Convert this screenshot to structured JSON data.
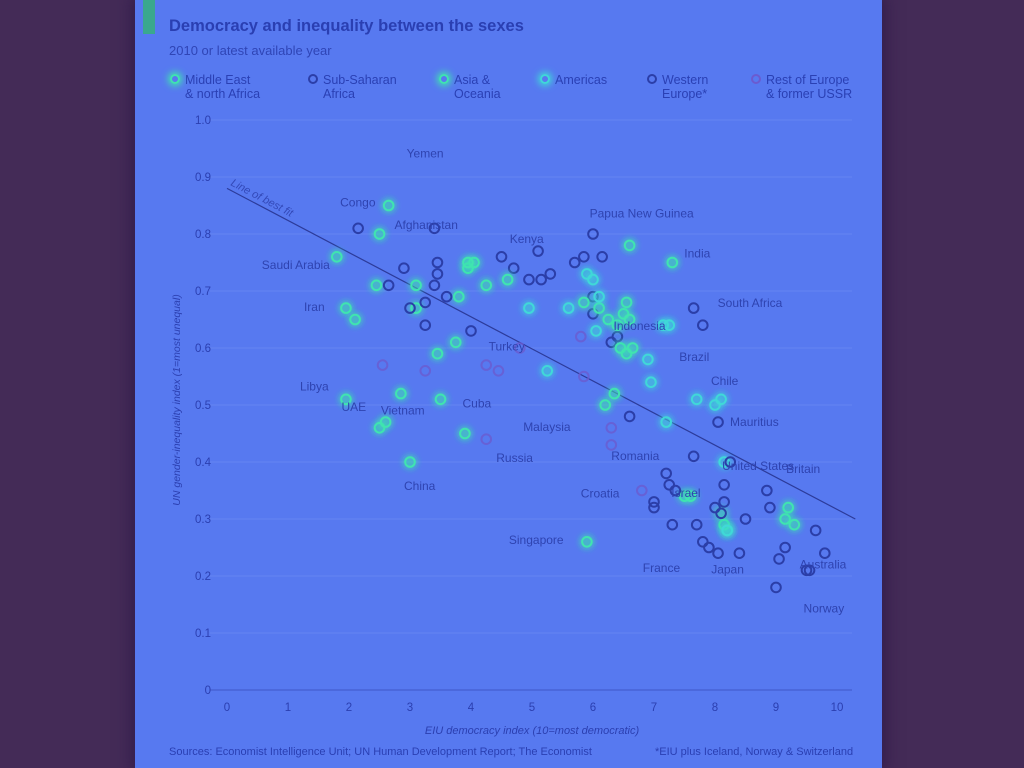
{
  "title": "Democracy and inequality between the sexes",
  "subtitle": "2010 or latest available year",
  "legend": [
    {
      "label": "Middle East\n& north Africa",
      "color": "#3fe4b0"
    },
    {
      "label": "Sub-Saharan\nAfrica",
      "color": "#2b3ea8"
    },
    {
      "label": "Asia &\nOceania",
      "color": "#3fe4b0"
    },
    {
      "label": "Americas",
      "color": "#3fd8d8"
    },
    {
      "label": "Western\nEurope*",
      "color": "#2b3ea8"
    },
    {
      "label": "Rest of Europe\n& former USSR",
      "color": "#6a5bd0"
    }
  ],
  "footer": {
    "source": "Sources: Economist Intelligence Unit; UN Human Development Report; The Economist",
    "footnote": "*EIU plus Iceland, Norway & Switzerland"
  },
  "chart_data": {
    "type": "scatter",
    "xlabel": "EIU democracy index (10=most democratic)",
    "ylabel": "UN gender-inequality index (1=most unequal)",
    "xlim": [
      0,
      10
    ],
    "ylim": [
      0,
      1.0
    ],
    "xticks": [
      "0",
      "1",
      "2",
      "3",
      "4",
      "5",
      "6",
      "7",
      "8",
      "9",
      "10"
    ],
    "yticks": [
      "0",
      "0.1",
      "0.2",
      "0.3",
      "0.4",
      "0.5",
      "0.6",
      "0.7",
      "0.8",
      "0.9",
      "1.0"
    ],
    "trendline": {
      "label": "Line of best fit",
      "x": [
        0,
        10.3
      ],
      "y": [
        0.88,
        0.3
      ]
    },
    "grid": true,
    "legend_position": "top",
    "series": [
      {
        "name": "Middle East & north Africa",
        "color": "#3fe4b0",
        "points": [
          [
            2.65,
            0.85
          ],
          [
            1.8,
            0.76
          ],
          [
            1.95,
            0.67
          ],
          [
            2.1,
            0.65
          ],
          [
            2.45,
            0.71
          ],
          [
            3.1,
            0.71
          ],
          [
            3.1,
            0.67
          ],
          [
            3.8,
            0.69
          ],
          [
            3.95,
            0.74
          ],
          [
            4.05,
            0.75
          ],
          [
            4.25,
            0.71
          ],
          [
            3.45,
            0.59
          ],
          [
            3.75,
            0.61
          ],
          [
            1.95,
            0.51
          ],
          [
            2.5,
            0.46
          ],
          [
            2.85,
            0.52
          ],
          [
            3.5,
            0.51
          ],
          [
            3.9,
            0.45
          ]
        ]
      },
      {
        "name": "Sub-Saharan Africa",
        "color": "#2b3ea8",
        "points": [
          [
            2.15,
            0.81
          ],
          [
            3.4,
            0.81
          ],
          [
            2.9,
            0.74
          ],
          [
            3.45,
            0.75
          ],
          [
            3.45,
            0.73
          ],
          [
            3.4,
            0.71
          ],
          [
            2.65,
            0.71
          ],
          [
            3.0,
            0.67
          ],
          [
            3.25,
            0.68
          ],
          [
            3.6,
            0.69
          ],
          [
            4.5,
            0.76
          ],
          [
            4.7,
            0.74
          ],
          [
            4.95,
            0.72
          ],
          [
            5.15,
            0.72
          ],
          [
            5.1,
            0.77
          ],
          [
            5.3,
            0.73
          ],
          [
            5.7,
            0.75
          ],
          [
            5.85,
            0.76
          ],
          [
            6.0,
            0.8
          ],
          [
            6.15,
            0.76
          ],
          [
            6.0,
            0.69
          ],
          [
            6.0,
            0.66
          ],
          [
            6.3,
            0.61
          ],
          [
            7.65,
            0.67
          ],
          [
            7.8,
            0.64
          ],
          [
            6.4,
            0.62
          ],
          [
            3.25,
            0.64
          ],
          [
            4.0,
            0.63
          ],
          [
            6.6,
            0.48
          ],
          [
            8.05,
            0.47
          ]
        ]
      },
      {
        "name": "Asia & Oceania",
        "color": "#3fe4b0",
        "points": [
          [
            2.5,
            0.8
          ],
          [
            3.95,
            0.75
          ],
          [
            4.6,
            0.72
          ],
          [
            5.85,
            0.68
          ],
          [
            6.1,
            0.67
          ],
          [
            6.25,
            0.65
          ],
          [
            6.4,
            0.64
          ],
          [
            6.5,
            0.66
          ],
          [
            6.55,
            0.68
          ],
          [
            6.6,
            0.65
          ],
          [
            6.45,
            0.6
          ],
          [
            6.55,
            0.59
          ],
          [
            6.65,
            0.6
          ],
          [
            6.6,
            0.78
          ],
          [
            7.3,
            0.75
          ],
          [
            5.9,
            0.26
          ],
          [
            6.2,
            0.5
          ],
          [
            6.35,
            0.52
          ],
          [
            7.5,
            0.34
          ],
          [
            7.6,
            0.34
          ],
          [
            8.15,
            0.29
          ],
          [
            8.2,
            0.28
          ],
          [
            8.1,
            0.31
          ],
          [
            9.2,
            0.32
          ],
          [
            9.15,
            0.3
          ],
          [
            9.3,
            0.29
          ],
          [
            3.0,
            0.4
          ],
          [
            2.6,
            0.47
          ]
        ]
      },
      {
        "name": "Americas",
        "color": "#3fd8d8",
        "points": [
          [
            5.6,
            0.67
          ],
          [
            5.9,
            0.73
          ],
          [
            6.0,
            0.72
          ],
          [
            6.1,
            0.69
          ],
          [
            6.05,
            0.63
          ],
          [
            7.15,
            0.64
          ],
          [
            7.25,
            0.64
          ],
          [
            6.9,
            0.58
          ],
          [
            7.7,
            0.51
          ],
          [
            6.95,
            0.54
          ],
          [
            8.0,
            0.5
          ],
          [
            8.1,
            0.51
          ],
          [
            7.2,
            0.47
          ],
          [
            8.15,
            0.4
          ],
          [
            8.2,
            0.28
          ],
          [
            5.25,
            0.56
          ],
          [
            4.95,
            0.67
          ]
        ]
      },
      {
        "name": "Western Europe*",
        "color": "#2b3ea8",
        "points": [
          [
            7.2,
            0.38
          ],
          [
            7.25,
            0.36
          ],
          [
            7.35,
            0.35
          ],
          [
            7.65,
            0.41
          ],
          [
            8.15,
            0.36
          ],
          [
            8.25,
            0.4
          ],
          [
            8.15,
            0.33
          ],
          [
            8.0,
            0.32
          ],
          [
            8.1,
            0.31
          ],
          [
            7.7,
            0.29
          ],
          [
            7.3,
            0.29
          ],
          [
            7.0,
            0.32
          ],
          [
            7.0,
            0.33
          ],
          [
            7.8,
            0.26
          ],
          [
            7.9,
            0.25
          ],
          [
            8.05,
            0.24
          ],
          [
            8.5,
            0.3
          ],
          [
            8.85,
            0.35
          ],
          [
            8.9,
            0.32
          ],
          [
            9.05,
            0.23
          ],
          [
            9.15,
            0.25
          ],
          [
            9.5,
            0.21
          ],
          [
            9.55,
            0.21
          ],
          [
            9.65,
            0.28
          ],
          [
            9.8,
            0.24
          ],
          [
            9.0,
            0.18
          ],
          [
            8.4,
            0.24
          ]
        ]
      },
      {
        "name": "Rest of Europe & former USSR",
        "color": "#6a5bd0",
        "points": [
          [
            4.25,
            0.57
          ],
          [
            4.45,
            0.56
          ],
          [
            4.8,
            0.6
          ],
          [
            5.8,
            0.62
          ],
          [
            5.85,
            0.55
          ],
          [
            6.3,
            0.46
          ],
          [
            6.3,
            0.43
          ],
          [
            6.8,
            0.35
          ],
          [
            2.55,
            0.57
          ],
          [
            3.25,
            0.56
          ],
          [
            4.25,
            0.44
          ]
        ]
      }
    ],
    "annotations": [
      {
        "text": "Yemen",
        "x": 2.65,
        "y": 0.85
      },
      {
        "text": "Congo",
        "x": 2.15,
        "y": 0.81
      },
      {
        "text": "Afghanistan",
        "x": 2.5,
        "y": 0.8
      },
      {
        "text": "Kenya",
        "x": 4.7,
        "y": 0.74
      },
      {
        "text": "Papua New Guinea",
        "x": 6.6,
        "y": 0.78
      },
      {
        "text": "India",
        "x": 7.3,
        "y": 0.75
      },
      {
        "text": "Saudi Arabia",
        "x": 1.8,
        "y": 0.76
      },
      {
        "text": "Indonesia",
        "x": 6.5,
        "y": 0.66
      },
      {
        "text": "Iran",
        "x": 1.95,
        "y": 0.67
      },
      {
        "text": "South Africa",
        "x": 7.65,
        "y": 0.67
      },
      {
        "text": "Turkey",
        "x": 5.6,
        "y": 0.62
      },
      {
        "text": "Brazil",
        "x": 7.25,
        "y": 0.64
      },
      {
        "text": "Libya",
        "x": 1.95,
        "y": 0.51
      },
      {
        "text": "Cuba",
        "x": 3.5,
        "y": 0.51
      },
      {
        "text": "Chile",
        "x": 8.0,
        "y": 0.5
      },
      {
        "text": "Malaysia",
        "x": 6.2,
        "y": 0.5
      },
      {
        "text": "Mauritius",
        "x": 8.05,
        "y": 0.47
      },
      {
        "text": "UAE",
        "x": 2.5,
        "y": 0.46
      },
      {
        "text": "Vietnam",
        "x": 2.85,
        "y": 0.52
      },
      {
        "text": "Romania",
        "x": 6.3,
        "y": 0.46
      },
      {
        "text": "United States",
        "x": 8.15,
        "y": 0.4
      },
      {
        "text": "Russia",
        "x": 4.25,
        "y": 0.44
      },
      {
        "text": "Israel",
        "x": 7.25,
        "y": 0.36
      },
      {
        "text": "Britain",
        "x": 8.15,
        "y": 0.36
      },
      {
        "text": "China",
        "x": 3.0,
        "y": 0.4
      },
      {
        "text": "Croatia",
        "x": 6.8,
        "y": 0.35
      },
      {
        "text": "Singapore",
        "x": 5.9,
        "y": 0.26
      },
      {
        "text": "Australia",
        "x": 9.65,
        "y": 0.28
      },
      {
        "text": "France",
        "x": 7.8,
        "y": 0.26
      },
      {
        "text": "Japan",
        "x": 8.2,
        "y": 0.28
      },
      {
        "text": "Norway",
        "x": 9.55,
        "y": 0.21
      }
    ]
  }
}
